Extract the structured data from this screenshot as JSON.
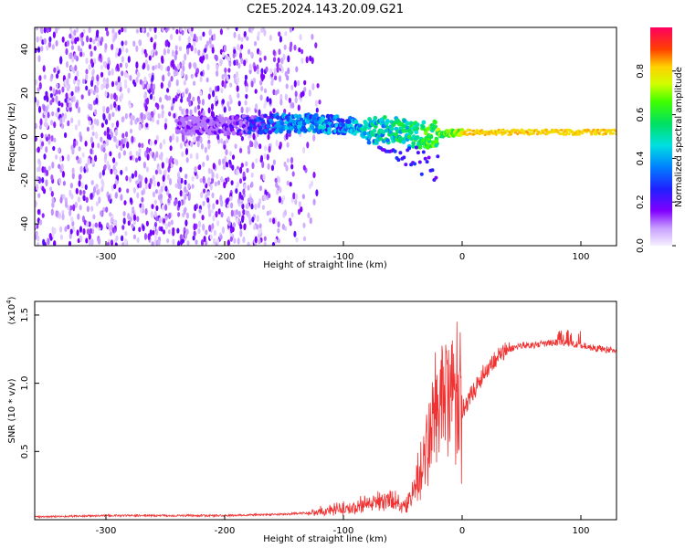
{
  "title": "C2E5.2024.143.20.09.G21",
  "chart_data": [
    {
      "type": "heatmap",
      "xlabel": "Height of straight line (km)",
      "ylabel": "Frequency (Hz)",
      "xlim": [
        -360,
        130
      ],
      "ylim": [
        -50,
        50
      ],
      "xticks": [
        -300,
        -200,
        -100,
        0,
        100
      ],
      "yticks": [
        -40,
        -20,
        0,
        20,
        40
      ],
      "colorbar": {
        "label": "Normalized spectral amplitude",
        "range": [
          0.0,
          1.0
        ],
        "ticks": [
          "0.0",
          "0.2",
          "0.4",
          "0.6",
          "0.8"
        ],
        "tick_values": [
          0.0,
          0.2,
          0.4,
          0.6,
          0.8
        ]
      },
      "ridge": {
        "x": [
          -360,
          -300,
          -200,
          -150,
          -120,
          -100,
          -80,
          -60,
          -40,
          -20,
          0,
          50,
          100,
          130
        ],
        "frequency": [
          4,
          5,
          5,
          6,
          6,
          5,
          3,
          3,
          1,
          1,
          2,
          2,
          2,
          2
        ],
        "amplitude": [
          0.1,
          0.12,
          0.2,
          0.45,
          0.5,
          0.45,
          0.55,
          0.6,
          0.65,
          0.75,
          0.85,
          0.85,
          0.85,
          0.85
        ]
      }
    },
    {
      "type": "line",
      "xlabel": "Height of straight line (km)",
      "ylabel": "SNR (10 * v/v)",
      "y_multiplier": "(x10",
      "y_multiplier_exp": "4",
      "y_multiplier_close": ")",
      "xlim": [
        -360,
        130
      ],
      "ylim": [
        0,
        1.6
      ],
      "xticks": [
        -300,
        -200,
        -100,
        0,
        100
      ],
      "yticks": [
        "0.5",
        "1.0",
        "1.5"
      ],
      "ytick_values": [
        0.5,
        1.0,
        1.5
      ],
      "color": "#f03232",
      "series": [
        {
          "x": [
            -360,
            -300,
            -250,
            -200,
            -150,
            -130,
            -110,
            -100,
            -90,
            -80,
            -70,
            -60,
            -55,
            -50,
            -45,
            -40,
            -35,
            -30,
            -25,
            -20,
            -15,
            -10,
            -5,
            0,
            10,
            20,
            30,
            40,
            50,
            60,
            70,
            80,
            90,
            100,
            110,
            120,
            130
          ],
          "y": [
            0.02,
            0.03,
            0.03,
            0.03,
            0.04,
            0.05,
            0.07,
            0.08,
            0.09,
            0.12,
            0.14,
            0.15,
            0.12,
            0.1,
            0.14,
            0.25,
            0.35,
            0.5,
            0.65,
            0.85,
            0.9,
            0.9,
            0.85,
            0.8,
            0.95,
            1.1,
            1.2,
            1.25,
            1.28,
            1.28,
            1.29,
            1.3,
            1.29,
            1.28,
            1.26,
            1.25,
            1.24
          ]
        }
      ]
    }
  ]
}
